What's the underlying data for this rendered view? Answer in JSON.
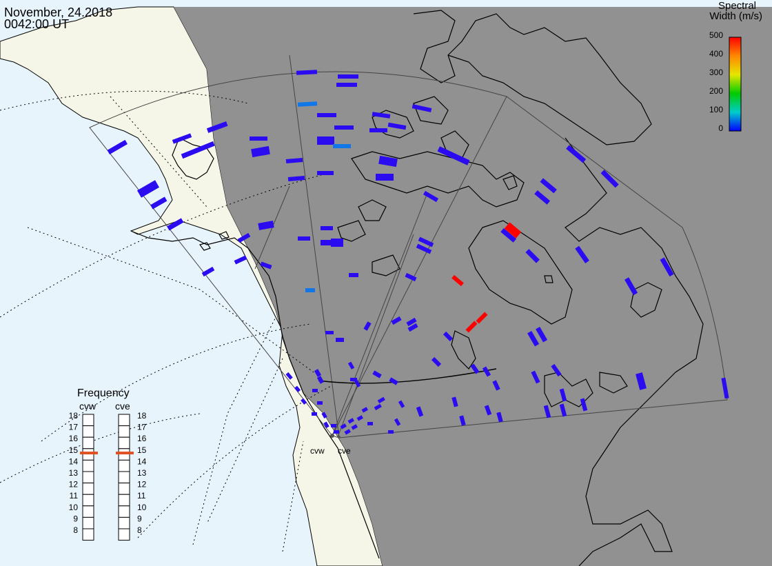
{
  "header": {
    "date": "November, 24.2018",
    "time": "0042:00 UT"
  },
  "colorbar": {
    "title_line1": "Spectral",
    "title_line2": "Width (m/s)",
    "ticks": [
      "500",
      "400",
      "300",
      "200",
      "100",
      "0"
    ],
    "colors": [
      "#ff0000",
      "#ff8800",
      "#e6e600",
      "#00cc00",
      "#00cccc",
      "#0000ff"
    ]
  },
  "frequency_panel": {
    "title": "Frequency",
    "radars": [
      {
        "name": "cvw",
        "frequency_mhz": 15
      },
      {
        "name": "cve",
        "frequency_mhz": 15
      }
    ],
    "scale": [
      "18",
      "17",
      "16",
      "15",
      "14",
      "13",
      "12",
      "11",
      "10",
      "9",
      "8"
    ]
  },
  "sites": {
    "west_label": "cvw",
    "east_label": "cve"
  },
  "colors": {
    "ocean": "#e8f4fc",
    "daylight_land": "#f6f6e8",
    "night": "#919191",
    "echo_low": "#2b0cf0",
    "echo_mid": "#1177e8",
    "echo_high": "#ff0000",
    "frequency_marker": "#e05020"
  }
}
